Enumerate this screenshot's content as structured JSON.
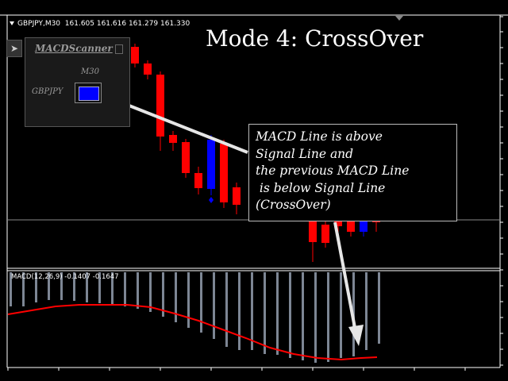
{
  "chart": {
    "symbol_label": "GBPJPY,M30",
    "ohlc_label": "161.605 161.616 161.279 161.330",
    "mode_title": "Mode 4: CrossOver"
  },
  "scanner_panel": {
    "title": "MACDScanner",
    "timeframe": "M30",
    "symbol": "GBPJPY",
    "cell_color": "#0000ff"
  },
  "callout": {
    "lines": [
      "MACD Line is above",
      "Signal Line and",
      "the previous MACD Line",
      " is below Signal Line",
      "(CrossOver)"
    ]
  },
  "macd_panel": {
    "label": "MACD(12,26,9) -0.1407 -0.1647"
  },
  "colors": {
    "bull_candle": "#0000ff",
    "bear_candle": "#ff0000",
    "histogram": "#7d8694",
    "signal_line": "#ff0000",
    "arrow": "#e6e6e6"
  }
}
